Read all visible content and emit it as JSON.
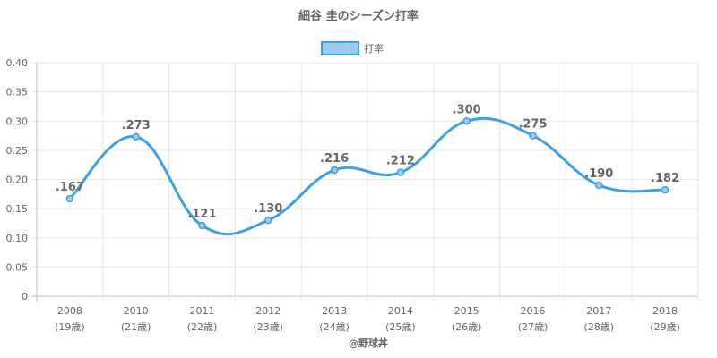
{
  "chart_data": {
    "type": "line",
    "title": "細谷 圭のシーズン打率",
    "legend": {
      "position": "top",
      "label": "打率"
    },
    "categories": [
      [
        "2008",
        "(19歳)"
      ],
      [
        "2010",
        "(21歳)"
      ],
      [
        "2011",
        "(22歳)"
      ],
      [
        "2012",
        "(23歳)"
      ],
      [
        "2013",
        "(24歳)"
      ],
      [
        "2014",
        "(25歳)"
      ],
      [
        "2015",
        "(26歳)"
      ],
      [
        "2016",
        "(27歳)"
      ],
      [
        "2017",
        "(28歳)"
      ],
      [
        "2018",
        "(29歳)"
      ]
    ],
    "series": [
      {
        "name": "打率",
        "values": [
          0.167,
          0.273,
          0.121,
          0.13,
          0.216,
          0.212,
          0.3,
          0.275,
          0.19,
          0.182
        ],
        "labels": [
          ".167",
          ".273",
          ".121",
          ".130",
          ".216",
          ".212",
          ".300",
          ".275",
          ".190",
          ".182"
        ]
      }
    ],
    "ylim": [
      0,
      0.4
    ],
    "yticks": [
      "0",
      "0.05",
      "0.10",
      "0.15",
      "0.20",
      "0.25",
      "0.30",
      "0.35",
      "0.40"
    ],
    "grid": true,
    "colors": {
      "line": "#3ea0e4",
      "fill": "#9dcbef",
      "grid": "#e6e6e6",
      "text": "#666666"
    }
  },
  "credit": "@野球丼"
}
